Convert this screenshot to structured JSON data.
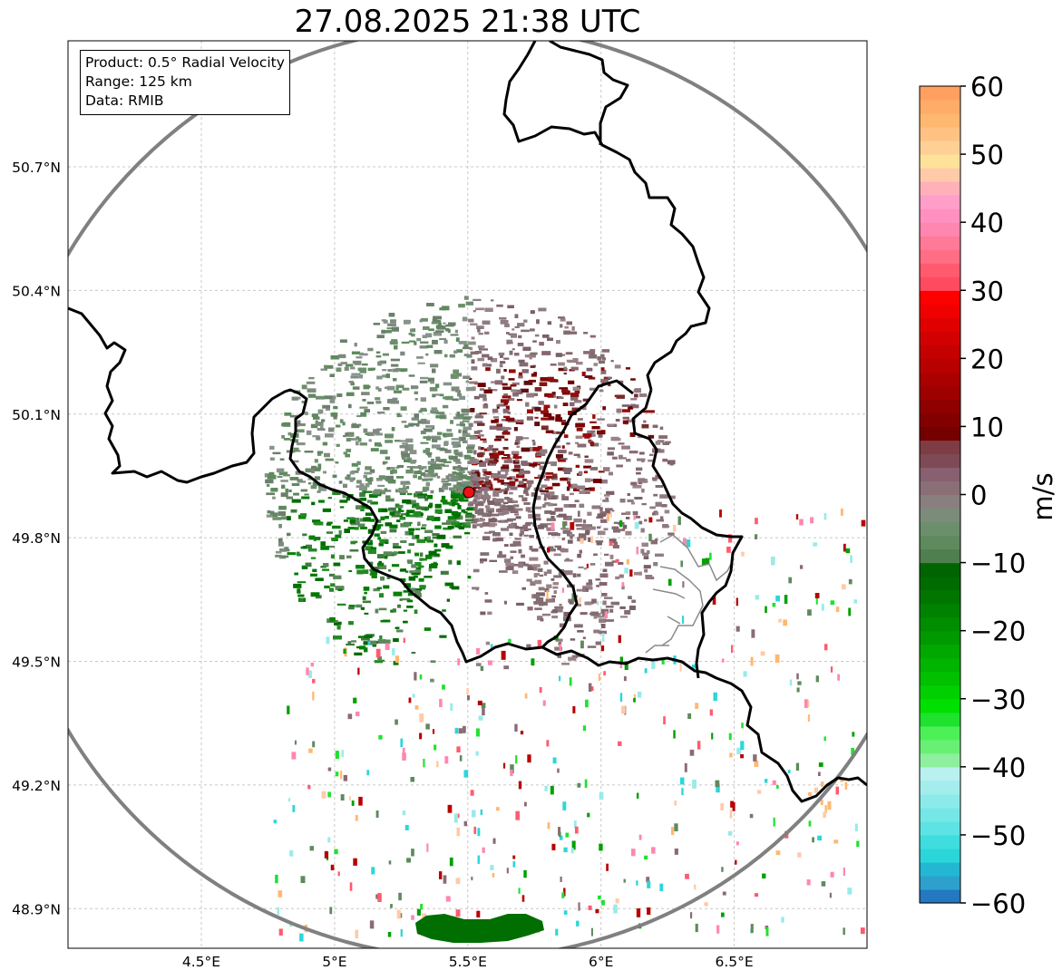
{
  "title": "27.08.2025 21:38 UTC",
  "info": {
    "product": "Product: 0.5° Radial Velocity",
    "range": "Range: 125 km",
    "data": "Data: RMIB"
  },
  "map": {
    "lon_range": [
      4.0,
      7.0
    ],
    "lat_range": [
      48.8,
      51.0
    ],
    "lon_ticks": [
      {
        "value": 4.5,
        "label": "4.5°E"
      },
      {
        "value": 5.0,
        "label": "5°E"
      },
      {
        "value": 5.5,
        "label": "5.5°E"
      },
      {
        "value": 6.0,
        "label": "6°E"
      },
      {
        "value": 6.5,
        "label": "6.5°E"
      }
    ],
    "lat_ticks": [
      {
        "value": 50.7,
        "label": "50.7°N"
      },
      {
        "value": 50.4,
        "label": "50.4°N"
      },
      {
        "value": 50.1,
        "label": "50.1°N"
      },
      {
        "value": 49.8,
        "label": "49.8°N"
      },
      {
        "value": 49.5,
        "label": "49.5°N"
      },
      {
        "value": 49.2,
        "label": "49.2°N"
      },
      {
        "value": 48.9,
        "label": "48.9°N"
      }
    ],
    "grid": true,
    "radar_site": {
      "lon": 5.5,
      "lat": 49.914,
      "color": "#ee1111"
    },
    "range_ring_color": "#808080",
    "border_color": "#000000",
    "region_border_color": "#8a8a8a"
  },
  "colorbar": {
    "label": "m/s",
    "min": -60,
    "max": 60,
    "ticks": [
      "60",
      "50",
      "40",
      "30",
      "20",
      "10",
      "0",
      "−10",
      "−20",
      "−30",
      "−40",
      "−50",
      "−60"
    ],
    "colors": [
      "#2478bf",
      "#2da1cc",
      "#22b8d4",
      "#2bd6da",
      "#3fdddd",
      "#5de3e3",
      "#75e7e7",
      "#8ceaea",
      "#a4eded",
      "#b9f0f0",
      "#8ef09e",
      "#68f074",
      "#4cf057",
      "#1ee22e",
      "#00e000",
      "#00d000",
      "#00c000",
      "#00b400",
      "#00a800",
      "#009a00",
      "#008e00",
      "#008200",
      "#007600",
      "#006b00",
      "#006400",
      "#4f7f4f",
      "#5e8a5e",
      "#6b8f6b",
      "#7b8c7b",
      "#8a7f7f",
      "#8a6f76",
      "#886070",
      "#7e4a55",
      "#7e3d45",
      "#750000",
      "#820000",
      "#900000",
      "#9e0000",
      "#aa0000",
      "#b80000",
      "#c40000",
      "#d20000",
      "#e00000",
      "#f00000",
      "#ff0000",
      "#ff4b60",
      "#ff5a6e",
      "#ff6e84",
      "#ff7a96",
      "#ff86b0",
      "#ff90c0",
      "#ff9ec8",
      "#ffb0b8",
      "#ffcaa8",
      "#ffe29a",
      "#ffd096",
      "#ffc282",
      "#ffb870",
      "#ffac68",
      "#ffa060"
    ]
  }
}
